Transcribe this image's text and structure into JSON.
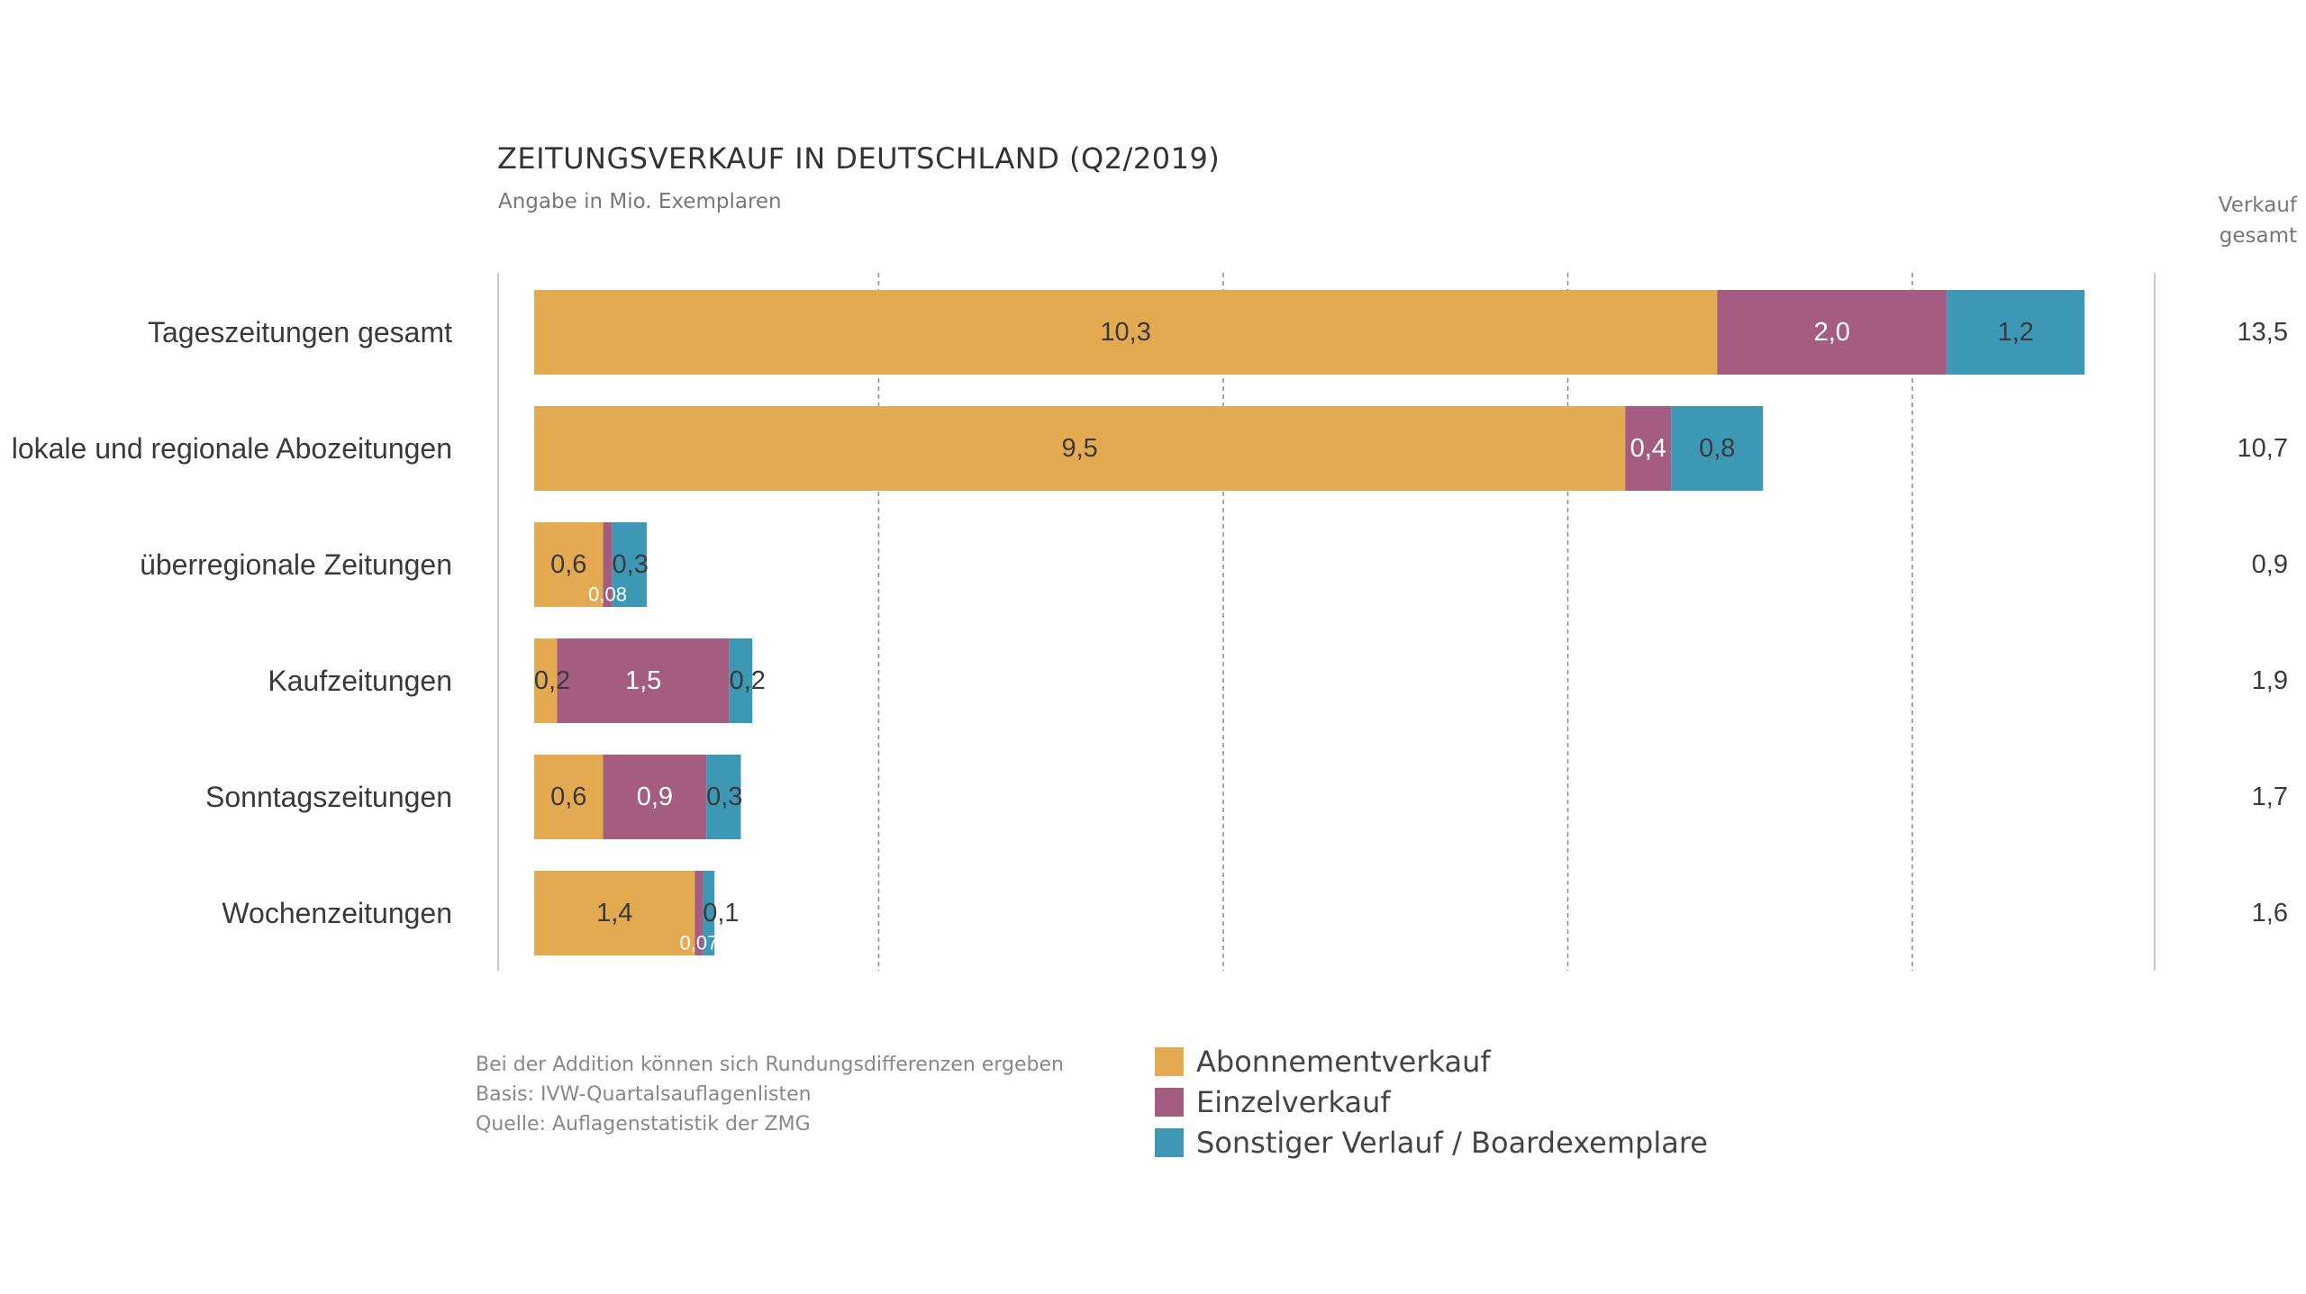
{
  "title": "ZEITUNGSVERKAUF IN DEUTSCHLAND (Q2/2019)",
  "subtitle": "Angabe in Mio. Exemplaren",
  "total_header": [
    "Verkauf",
    "gesamt"
  ],
  "colors": {
    "abo": "#E3AA52",
    "einzel": "#A45D80",
    "sonstig": "#3C98B5",
    "grid": "#8a8a8a",
    "text": "#3a3a3a"
  },
  "chart_data": {
    "type": "bar",
    "orientation": "horizontal",
    "stacked": true,
    "title": "ZEITUNGSVERKAUF IN DEUTSCHLAND (Q2/2019)",
    "subtitle": "Angabe in Mio. Exemplaren",
    "xlim": [
      0,
      15
    ],
    "grid": "vertical dashed",
    "categories": [
      "Tageszeitungen gesamt",
      "lokale und regionale Abozeitungen",
      "überregionale Zeitungen",
      "Kaufzeitungen",
      "Sonntagszeitungen",
      "Wochenzeitungen"
    ],
    "series": [
      {
        "name": "Abonnementverkauf",
        "key": "abo",
        "values": [
          10.3,
          9.5,
          0.6,
          0.2,
          0.6,
          1.4
        ],
        "labels": [
          "10,3",
          "9,5",
          "0,6",
          "0,2",
          "0,6",
          "1,4"
        ]
      },
      {
        "name": "Einzelverkauf",
        "key": "einzel",
        "values": [
          2.0,
          0.4,
          0.08,
          1.5,
          0.9,
          0.07
        ],
        "labels": [
          "2,0",
          "0,4",
          "0,08",
          "1,5",
          "0,9",
          "0,07"
        ]
      },
      {
        "name": "Sonstiger Verlauf / Boardexemplare",
        "key": "sonstig",
        "values": [
          1.2,
          0.8,
          0.3,
          0.2,
          0.3,
          0.1
        ],
        "labels": [
          "1,2",
          "0,8",
          "0,3",
          "0,2",
          "0,3",
          "0,1"
        ]
      }
    ],
    "totals": [
      "13,5",
      "10,7",
      "0,9",
      "1,9",
      "1,7",
      "1,6"
    ],
    "legend": [
      "Abonnementverkauf",
      "Einzelverkauf",
      "Sonstiger Verlauf / Boardexemplare"
    ],
    "legend_position": "bottom"
  },
  "notes": [
    "Bei der Addition können sich Rundungsdifferenzen ergeben",
    "Basis: IVW-Quartalsauflagenlisten",
    "Quelle: Auflagenstatistik der ZMG"
  ]
}
